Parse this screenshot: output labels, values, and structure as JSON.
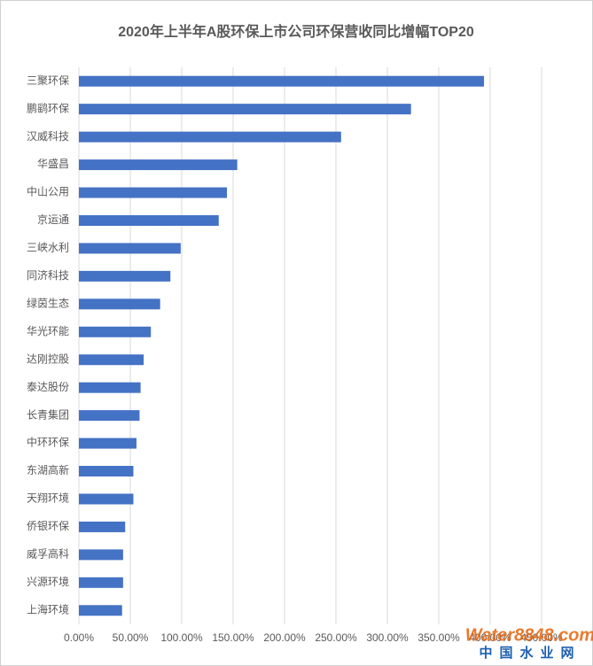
{
  "chart_data": {
    "type": "hbar",
    "title": "2020年上半年A股环保上市公司环保营收同比增幅TOP20",
    "categories": [
      "三聚环保",
      "鹏鹞环保",
      "汉威科技",
      "华盛昌",
      "中山公用",
      "京运通",
      "三峡水利",
      "同济科技",
      "绿茵生态",
      "华光环能",
      "达刚控股",
      "泰达股份",
      "长青集团",
      "中环环保",
      "东湖高新",
      "天翔环境",
      "侨银环保",
      "威孚高科",
      "兴源环境",
      "上海环境"
    ],
    "values": [
      394,
      323,
      255,
      154,
      144,
      136,
      99,
      89,
      79,
      70,
      63,
      60,
      59,
      56,
      53,
      53,
      45,
      43,
      43,
      42
    ],
    "color": "#4472c4",
    "xlim": [
      0,
      450
    ],
    "xticks": [
      {
        "value": 0,
        "label": "0.00%"
      },
      {
        "value": 50,
        "label": "50.00%"
      },
      {
        "value": 100,
        "label": "100.00%"
      },
      {
        "value": 150,
        "label": "150.00%"
      },
      {
        "value": 200,
        "label": "200.00%"
      },
      {
        "value": 250,
        "label": "250.00%"
      },
      {
        "value": 300,
        "label": "300.00%"
      },
      {
        "value": 350,
        "label": "350.00%"
      },
      {
        "value": 400,
        "label": "400.00%"
      },
      {
        "value": 450,
        "label": "450.00%"
      }
    ],
    "grid": true,
    "watermark": "Water8848.com",
    "watermark_sub": "中国水业网"
  }
}
